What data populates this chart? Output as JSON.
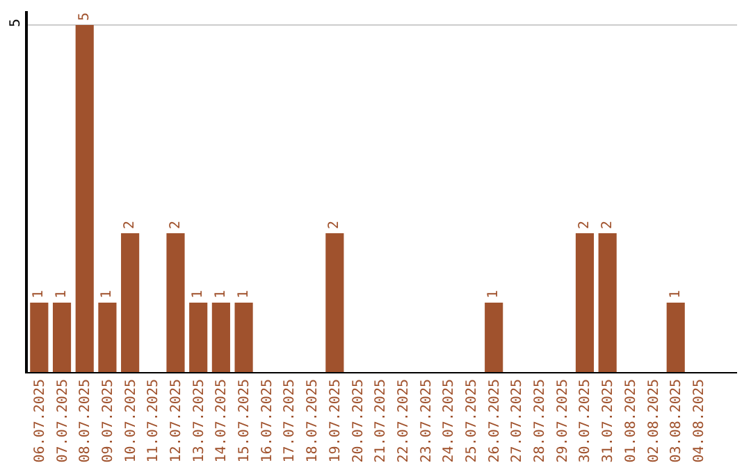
{
  "chart_data": {
    "type": "bar",
    "categories": [
      "06.07.2025",
      "07.07.2025",
      "08.07.2025",
      "09.07.2025",
      "10.07.2025",
      "11.07.2025",
      "12.07.2025",
      "13.07.2025",
      "14.07.2025",
      "15.07.2025",
      "16.07.2025",
      "17.07.2025",
      "18.07.2025",
      "19.07.2025",
      "20.07.2025",
      "21.07.2025",
      "22.07.2025",
      "23.07.2025",
      "24.07.2025",
      "25.07.2025",
      "26.07.2025",
      "27.07.2025",
      "28.07.2025",
      "29.07.2025",
      "30.07.2025",
      "31.07.2025",
      "01.08.2025",
      "02.08.2025",
      "03.08.2025",
      "04.08.2025"
    ],
    "values": [
      1,
      1,
      5,
      1,
      2,
      0,
      2,
      1,
      1,
      1,
      0,
      0,
      0,
      2,
      0,
      0,
      0,
      0,
      0,
      0,
      1,
      0,
      0,
      0,
      2,
      2,
      0,
      0,
      1,
      0
    ],
    "value_labels": [
      "1",
      "1",
      "5",
      "1",
      "2",
      null,
      "2",
      "1",
      "1",
      "1",
      null,
      null,
      null,
      "2",
      null,
      null,
      null,
      null,
      null,
      null,
      "1",
      null,
      null,
      null,
      "2",
      "2",
      null,
      null,
      "1",
      null
    ],
    "color": "#a0522d",
    "ylim": [
      0,
      5.2
    ],
    "yticks": [
      5
    ],
    "grid": "y"
  }
}
